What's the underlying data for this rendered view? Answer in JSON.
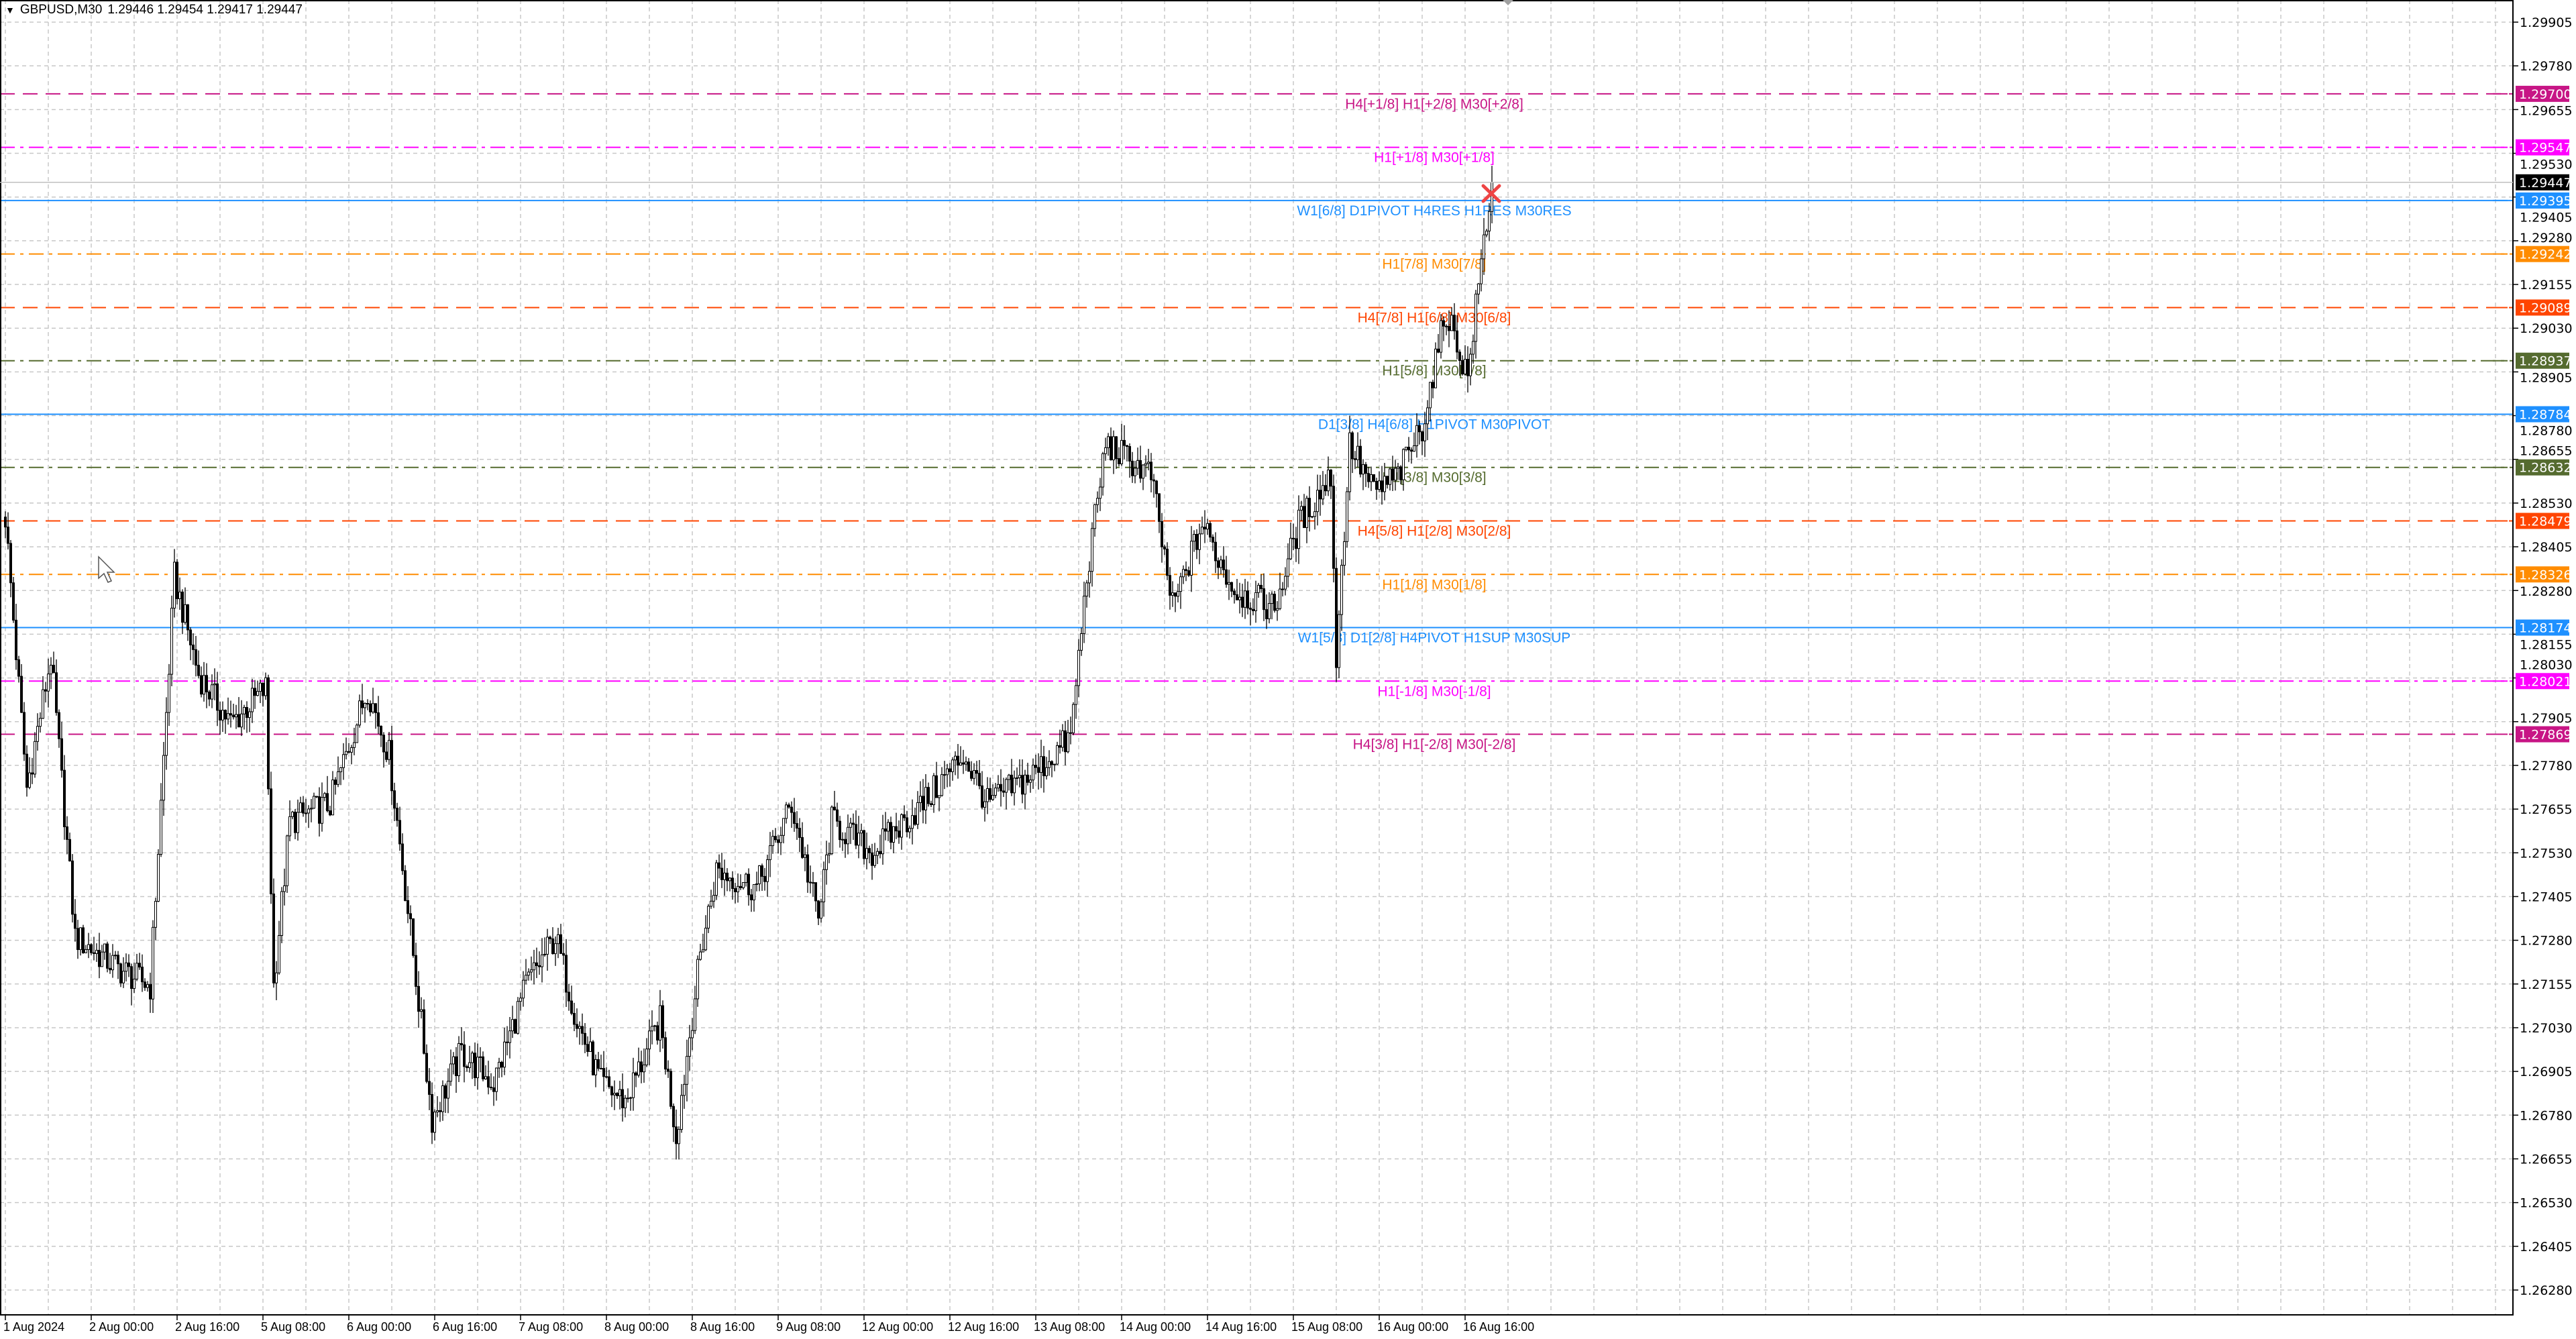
{
  "header": {
    "symbol_timeframe": "GBPUSD,M30",
    "ohlc": "1.29446 1.29454 1.29417 1.29447"
  },
  "price_axis": {
    "ticks": [
      "1.29905",
      "1.29780",
      "1.29655",
      "1.29530",
      "1.29405",
      "1.29280",
      "1.29155",
      "1.29030",
      "1.28905",
      "1.28780",
      "1.28655",
      "1.28530",
      "1.28405",
      "1.28280",
      "1.28155",
      "1.28030",
      "1.27905",
      "1.27780",
      "1.27655",
      "1.27530",
      "1.27405",
      "1.27280",
      "1.27155",
      "1.27030",
      "1.26905",
      "1.26780",
      "1.26655",
      "1.26530",
      "1.26405",
      "1.26280"
    ],
    "current_price": "1.29447",
    "current_price_color": "#000000"
  },
  "time_axis": {
    "labels": [
      "1 Aug 2024",
      "2 Aug 00:00",
      "2 Aug 16:00",
      "5 Aug 08:00",
      "6 Aug 00:00",
      "6 Aug 16:00",
      "7 Aug 08:00",
      "8 Aug 00:00",
      "8 Aug 16:00",
      "9 Aug 08:00",
      "12 Aug 00:00",
      "12 Aug 16:00",
      "13 Aug 08:00",
      "14 Aug 00:00",
      "14 Aug 16:00",
      "15 Aug 08:00",
      "16 Aug 00:00",
      "16 Aug 16:00"
    ]
  },
  "levels": [
    {
      "price": "1.29700",
      "label": "H4[+1/8] H1[+2/8] M30[+2/8]",
      "color": "#C71585",
      "style": "dash"
    },
    {
      "price": "1.29547",
      "label": "H1[+1/8] M30[+1/8]",
      "color": "#FF00FF",
      "style": "dashdot"
    },
    {
      "price": "1.29395",
      "label": "W1[6/8] D1PIVOT H4RES H1RES M30RES",
      "color": "#1E90FF",
      "style": "solid"
    },
    {
      "price": "1.29242",
      "label": "H1[7/8] M30[7/8]",
      "color": "#FF8C00",
      "style": "dashdot"
    },
    {
      "price": "1.29089",
      "label": "H4[7/8] H1[6/8] M30[6/8]",
      "color": "#FF4500",
      "style": "dash"
    },
    {
      "price": "1.28937",
      "label": "H1[5/8] M30[5/8]",
      "color": "#556B2F",
      "style": "dashdot"
    },
    {
      "price": "1.28784",
      "label": "D1[3/8] H4[6/8] H1PIVOT M30PIVOT",
      "color": "#1E90FF",
      "style": "solid"
    },
    {
      "price": "1.28632",
      "label": "H1[3/8] M30[3/8]",
      "color": "#556B2F",
      "style": "dashdot"
    },
    {
      "price": "1.28479",
      "label": "H4[5/8] H1[2/8] M30[2/8]",
      "color": "#FF4500",
      "style": "dash"
    },
    {
      "price": "1.28326",
      "label": "H1[1/8] M30[1/8]",
      "color": "#FF8C00",
      "style": "dashdot"
    },
    {
      "price": "1.28174",
      "label": "W1[5/8] D1[2/8] H4PIVOT H1SUP M30SUP",
      "color": "#1E90FF",
      "style": "solid"
    },
    {
      "price": "1.28021",
      "label": "H1[-1/8] M30[-1/8]",
      "color": "#FF00FF",
      "style": "dashdot"
    },
    {
      "price": "1.27869",
      "label": "H4[3/8] H1[-2/8] M30[-2/8]",
      "color": "#C71585",
      "style": "dash"
    }
  ],
  "chart_data": {
    "type": "candlestick",
    "title": "GBPUSD,M30",
    "ylim": [
      1.2628,
      1.29905
    ],
    "grid": true,
    "approx_close_path": [
      [
        "08-01 08:00",
        1.2849
      ],
      [
        "08-01 12:00",
        1.27715
      ],
      [
        "08-01 16:30",
        1.2809
      ],
      [
        "08-01 21:00",
        1.2729
      ],
      [
        "08-02 05:00",
        1.272
      ],
      [
        "08-02 11:00",
        1.2715
      ],
      [
        "08-02 15:30",
        1.2832
      ],
      [
        "08-02 20:00",
        1.2804
      ],
      [
        "08-05 02:00",
        1.279
      ],
      [
        "08-05 08:30",
        1.28
      ],
      [
        "08-05 10:00",
        1.2715
      ],
      [
        "08-05 13:00",
        1.2762
      ],
      [
        "08-05 20:30",
        1.2767
      ],
      [
        "08-06 03:30",
        1.28
      ],
      [
        "08-06 07:30",
        1.2781
      ],
      [
        "08-06 12:00",
        1.2724
      ],
      [
        "08-06 15:30",
        1.2677
      ],
      [
        "08-06 21:00",
        1.2696
      ],
      [
        "08-07 03:00",
        1.2687
      ],
      [
        "08-07 09:00",
        1.2715
      ],
      [
        "08-07 14:30",
        1.2729
      ],
      [
        "08-07 18:30",
        1.2705
      ],
      [
        "08-07 23:00",
        1.2687
      ],
      [
        "08-08 03:30",
        1.2682
      ],
      [
        "08-08 10:00",
        1.2705
      ],
      [
        "08-08 13:00",
        1.2672
      ],
      [
        "08-08 17:30",
        1.2724
      ],
      [
        "08-08 20:30",
        1.2748
      ],
      [
        "08-09 04:00",
        1.2743
      ],
      [
        "08-09 10:30",
        1.2767
      ],
      [
        "08-09 15:30",
        1.2734
      ],
      [
        "08-09 18:00",
        1.2762
      ],
      [
        "08-12 01:30",
        1.2753
      ],
      [
        "08-12 11:00",
        1.2767
      ],
      [
        "08-12 18:30",
        1.2781
      ],
      [
        "08-12 23:00",
        1.2767
      ],
      [
        "08-13 08:00",
        1.2776
      ],
      [
        "08-13 14:30",
        1.2786
      ],
      [
        "08-13 17:30",
        1.2832
      ],
      [
        "08-13 21:00",
        1.287
      ],
      [
        "08-14 05:30",
        1.2861
      ],
      [
        "08-14 09:30",
        1.2823
      ],
      [
        "08-14 15:00",
        1.2847
      ],
      [
        "08-14 21:00",
        1.2828
      ],
      [
        "08-15 04:30",
        1.2823
      ],
      [
        "08-15 09:00",
        1.2847
      ],
      [
        "08-15 15:00",
        1.2861
      ],
      [
        "08-15 16:00",
        1.2809
      ],
      [
        "08-15 18:30",
        1.287
      ],
      [
        "08-15 23:00",
        1.2856
      ],
      [
        "08-16 03:30",
        1.2861
      ],
      [
        "08-16 08:00",
        1.2875
      ],
      [
        "08-16 12:30",
        1.2908
      ],
      [
        "08-16 16:30",
        1.2889
      ],
      [
        "08-16 19:00",
        1.2922
      ],
      [
        "08-16 21:00",
        1.29447
      ]
    ]
  }
}
